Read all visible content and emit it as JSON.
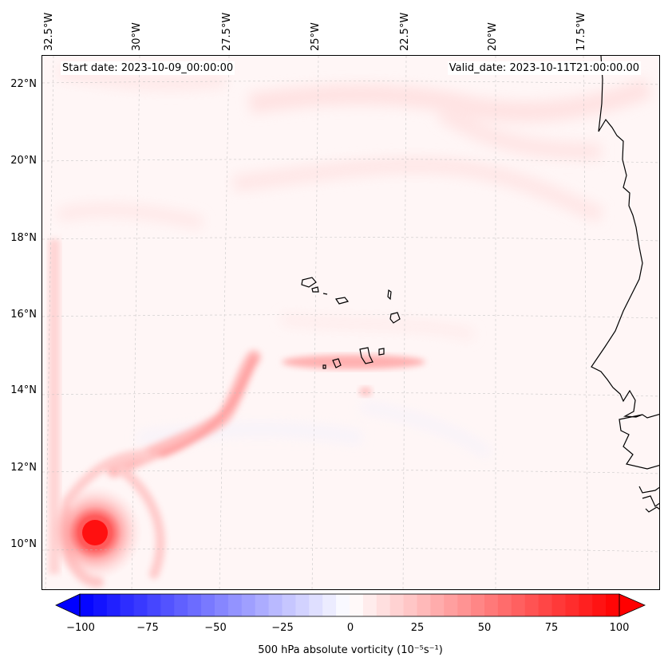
{
  "map": {
    "title_start": "Start date: 2023-10-09_00:00:00",
    "title_valid": "Valid_date: 2023-10-11T21:00:00.00",
    "lon_labels": [
      "32.5°W",
      "30°W",
      "27.5°W",
      "25°W",
      "22.5°W",
      "20°W",
      "17.5°W"
    ],
    "lat_labels": [
      "22°N",
      "20°N",
      "18°N",
      "16°N",
      "14°N",
      "12°N",
      "10°N"
    ],
    "colors": {
      "land_outline": "#000000",
      "positive": "#ff0000",
      "negative": "#0000ff",
      "gridline": "#bbbbbb"
    }
  },
  "colorbar": {
    "ticks": [
      "−100",
      "−75",
      "−50",
      "−25",
      "0",
      "25",
      "50",
      "75",
      "100"
    ],
    "min": -100,
    "max": 100,
    "step": 5,
    "label": "500 hPa absolute vorticity (10⁻⁵s⁻¹)"
  }
}
